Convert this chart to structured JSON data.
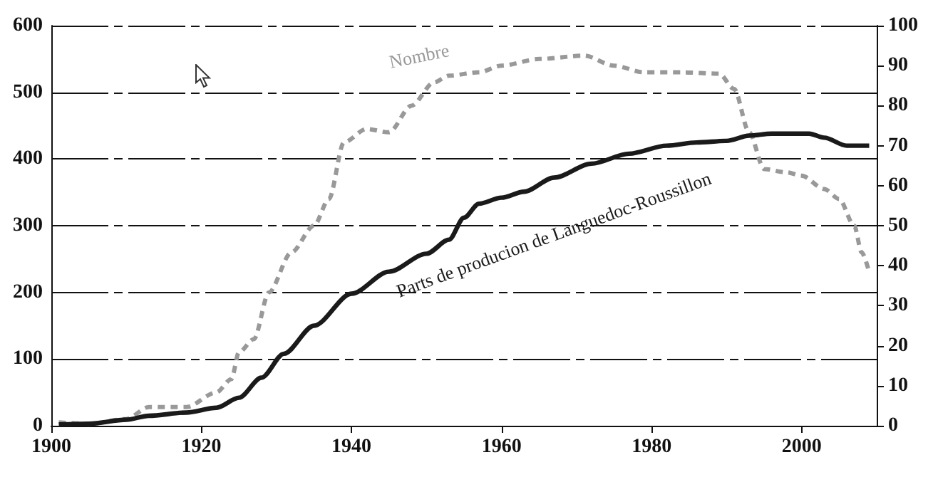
{
  "chart_data": {
    "type": "line",
    "xlim": [
      1900,
      2010
    ],
    "xticks": [
      1900,
      1920,
      1940,
      1960,
      1980,
      2000
    ],
    "ylim": [
      0,
      600
    ],
    "yticks": [
      0,
      100,
      200,
      300,
      400,
      500,
      600
    ],
    "y2lim": [
      0,
      100
    ],
    "y2ticks": [
      0,
      10,
      20,
      30,
      40,
      50,
      60,
      70,
      80,
      90,
      100
    ],
    "grid": "y",
    "legend": false,
    "marker": "none",
    "series": [
      {
        "name": "Nombre",
        "color": "#999999",
        "line_style": "dashed",
        "x": [
          1901,
          1905,
          1910,
          1913,
          1918,
          1922,
          1924,
          1925,
          1927,
          1929,
          1932,
          1935,
          1937,
          1939,
          1942,
          1945,
          1948,
          1951,
          1953,
          1957,
          1960,
          1965,
          1971,
          1975,
          1979,
          1984,
          1989,
          1991,
          1993,
          1995,
          1998,
          2000,
          2003,
          2005,
          2007,
          2008,
          2009
        ],
        "values": [
          5,
          3,
          10,
          28,
          28,
          50,
          70,
          110,
          130,
          200,
          260,
          300,
          340,
          425,
          445,
          440,
          480,
          515,
          525,
          530,
          540,
          550,
          555,
          540,
          530,
          530,
          528,
          505,
          440,
          385,
          380,
          375,
          355,
          340,
          300,
          260,
          230
        ]
      },
      {
        "name": "Parts de producion de Languedoc-Roussillon",
        "color": "#1a1a1a",
        "line_style": "solid",
        "axis": "y2",
        "x": [
          1901,
          1905,
          1910,
          1913,
          1918,
          1922,
          1925,
          1928,
          1931,
          1935,
          1940,
          1945,
          1950,
          1953,
          1955,
          1957,
          1960,
          1963,
          1967,
          1972,
          1977,
          1982,
          1986,
          1990,
          1993,
          1996,
          2001,
          2003,
          2006,
          2009
        ],
        "values": [
          0.3,
          0.5,
          1.5,
          2.5,
          3.3,
          4.5,
          7,
          12,
          18,
          25,
          33,
          38.5,
          43,
          46.5,
          52,
          55.5,
          57,
          58.5,
          62,
          65.5,
          68,
          70,
          70.8,
          71.2,
          72.5,
          73,
          73,
          72,
          70,
          70
        ]
      }
    ]
  }
}
